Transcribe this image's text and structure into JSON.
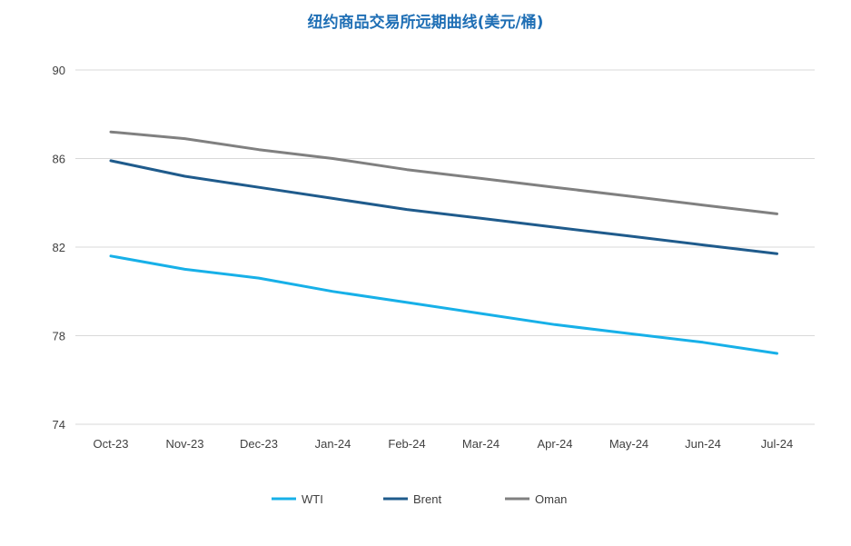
{
  "chart_data": {
    "type": "line",
    "title": "纽约商品交易所远期曲线(美元/桶)",
    "categories": [
      "Oct-23",
      "Nov-23",
      "Dec-23",
      "Jan-24",
      "Feb-24",
      "Mar-24",
      "Apr-24",
      "May-24",
      "Jun-24",
      "Jul-24"
    ],
    "yticks": [
      "90",
      "86",
      "82",
      "78",
      "74"
    ],
    "ylim": [
      74,
      90
    ],
    "grid": true,
    "legend_position": "bottom",
    "series": [
      {
        "name": "WTI",
        "color": "#17b0e8",
        "values": [
          81.6,
          81.0,
          80.6,
          80.0,
          79.5,
          79.0,
          78.5,
          78.1,
          77.7,
          77.2
        ]
      },
      {
        "name": "Brent",
        "color": "#1f5b8c",
        "values": [
          85.9,
          85.2,
          84.7,
          84.2,
          83.7,
          83.3,
          82.9,
          82.5,
          82.1,
          81.7
        ]
      },
      {
        "name": "Oman",
        "color": "#808080",
        "values": [
          87.2,
          86.9,
          86.4,
          86.0,
          85.5,
          85.1,
          84.7,
          84.3,
          83.9,
          83.5
        ]
      }
    ]
  }
}
